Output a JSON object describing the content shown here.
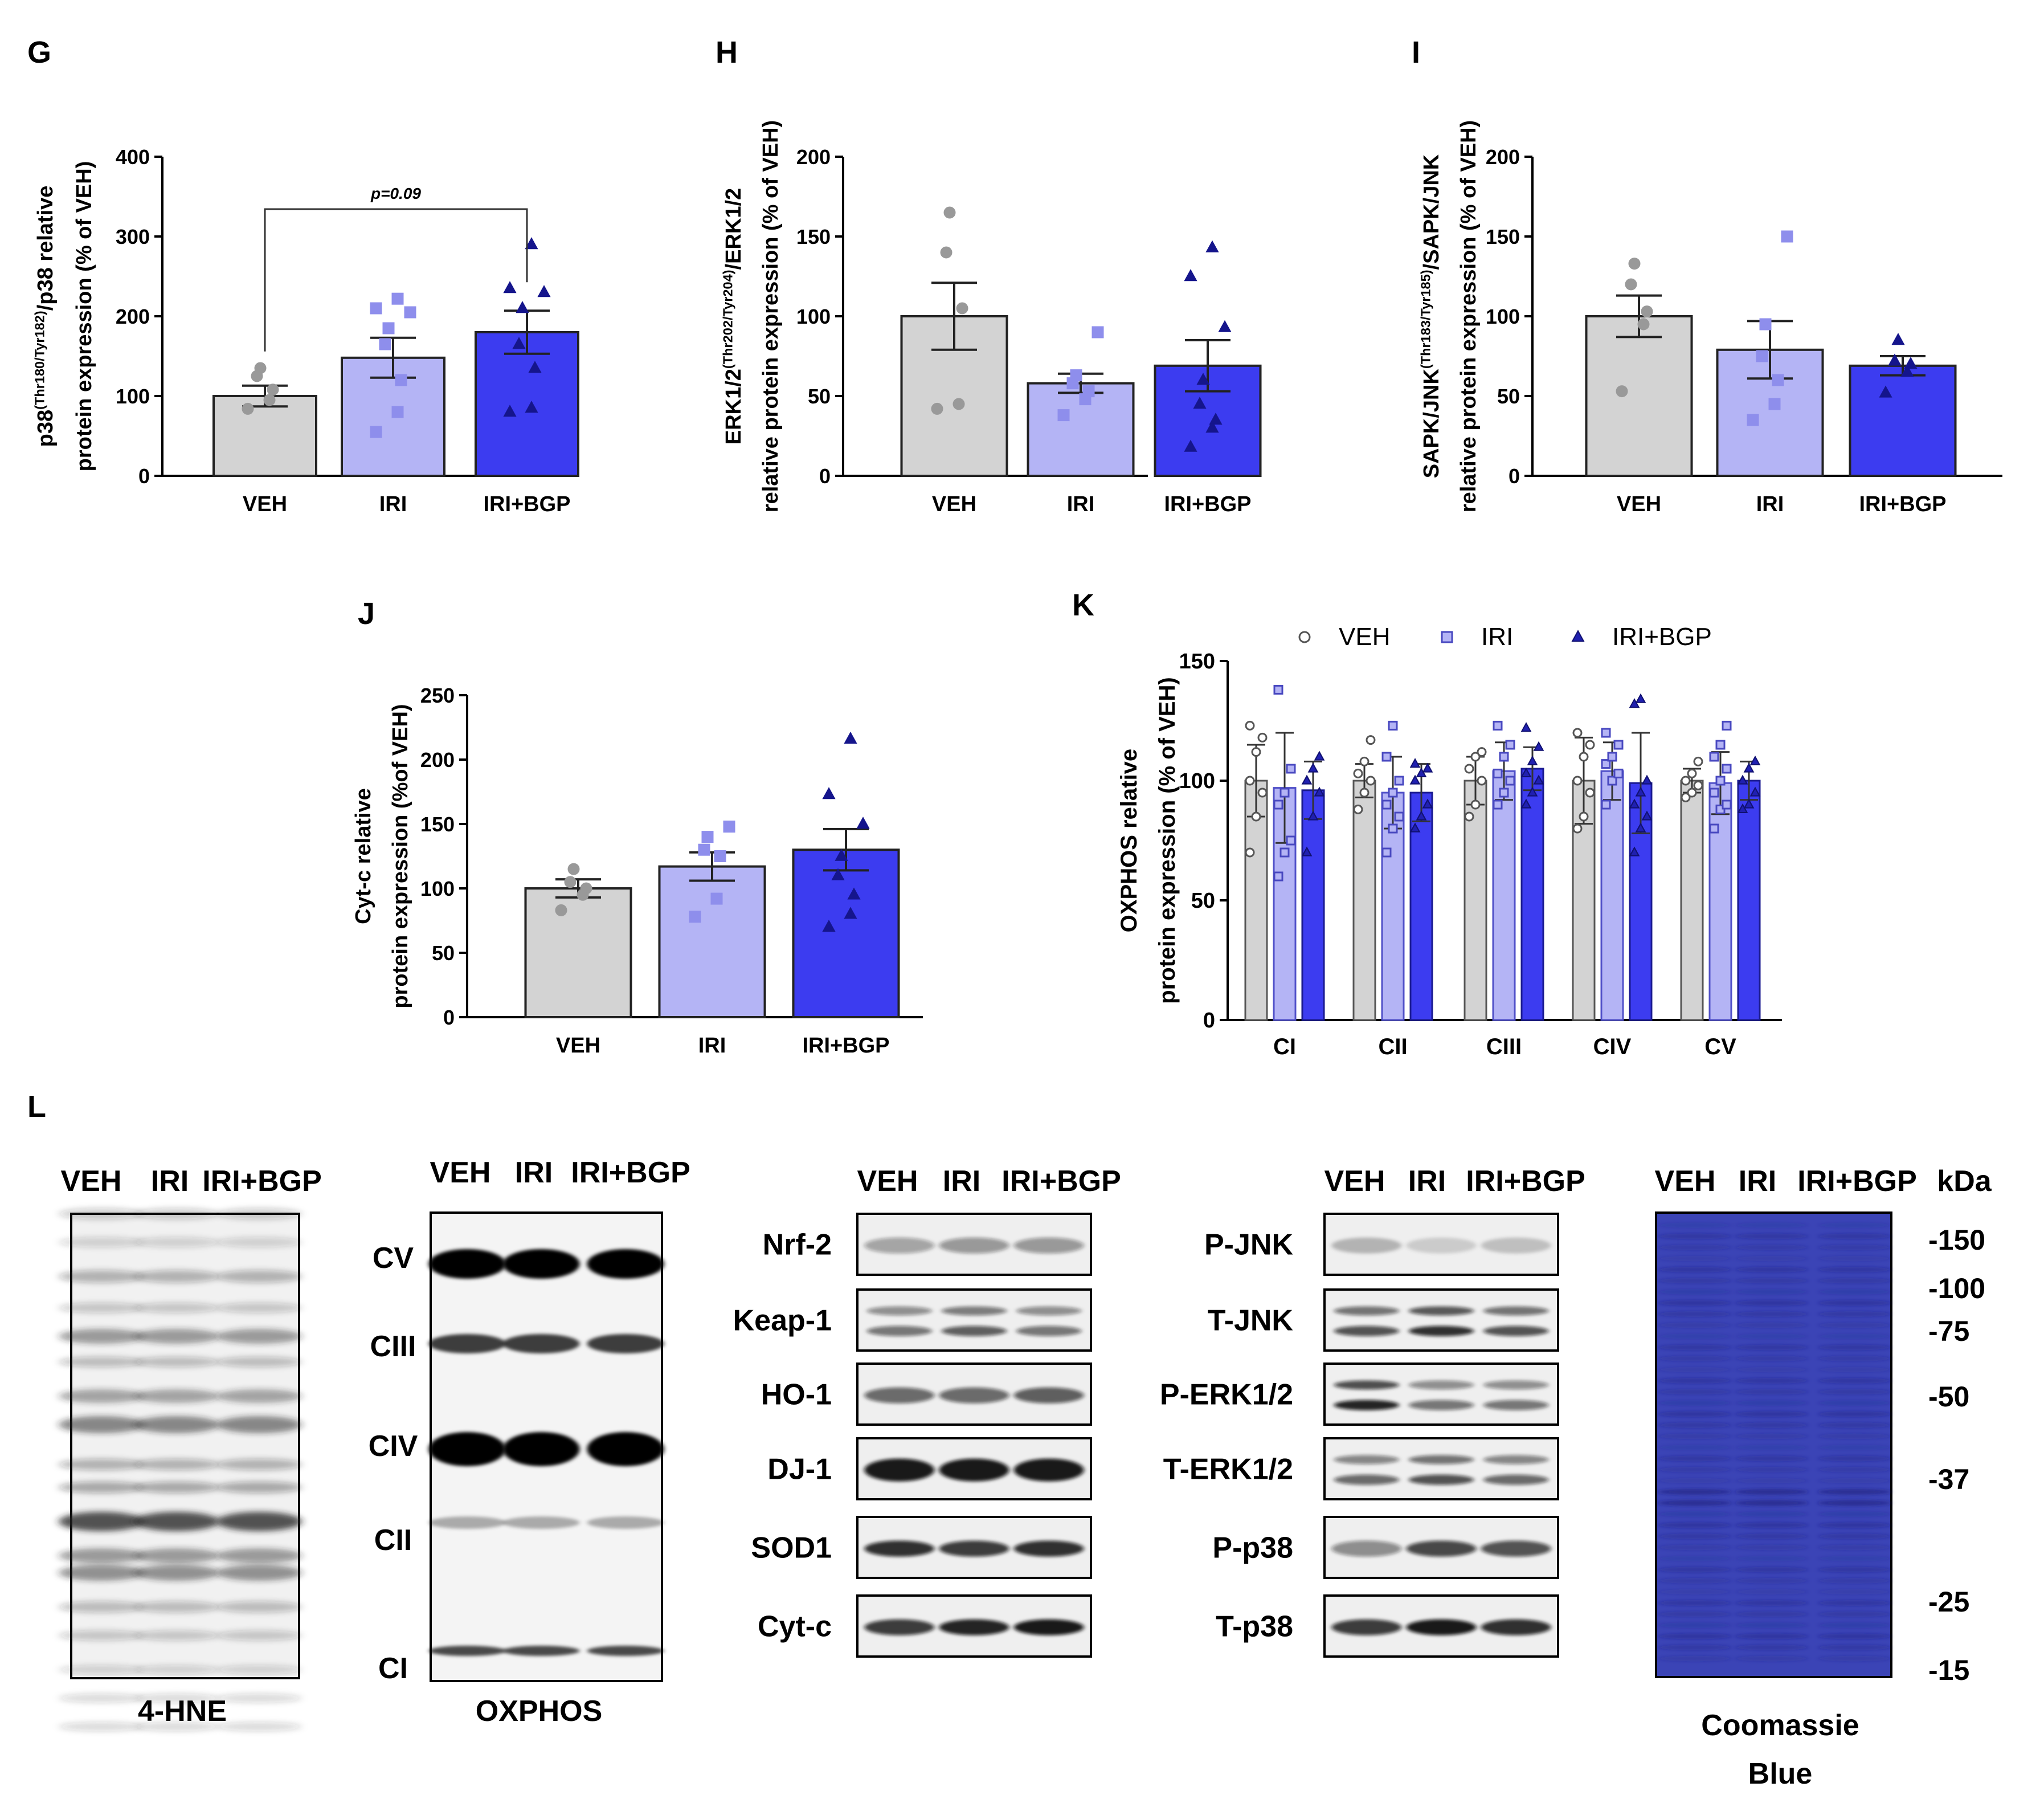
{
  "chart_data": [
    {
      "id": "G",
      "panel_label": "G",
      "type": "bar",
      "title": "",
      "ylabel_lines": [
        "p38|(Thr180/Tyr182)|/p38 relative",
        "protein expression (% of VEH)"
      ],
      "ylim": [
        0,
        400
      ],
      "ticks": [
        0,
        100,
        200,
        300,
        400
      ],
      "categories": [
        "VEH",
        "IRI",
        "IRI+BGP"
      ],
      "means": [
        100,
        148,
        180
      ],
      "sem": [
        13,
        25,
        27
      ],
      "points": [
        [
          84,
          95,
          108,
          125,
          135
        ],
        [
          55,
          80,
          120,
          165,
          185,
          205,
          210,
          222
        ],
        [
          80,
          85,
          135,
          165,
          210,
          230,
          235,
          290
        ]
      ],
      "annotation": {
        "text": "p=0.09",
        "from": 0,
        "to": 2,
        "level": 370
      }
    },
    {
      "id": "H",
      "panel_label": "H",
      "type": "bar",
      "title": "",
      "ylabel_lines": [
        "ERK1/2|(Thr202/Tyr204)|/ERK1/2",
        "relative protein expression (% of VEH)"
      ],
      "ylim": [
        0,
        200
      ],
      "ticks": [
        0,
        50,
        100,
        150,
        200
      ],
      "categories": [
        "VEH",
        "IRI",
        "IRI+BGP"
      ],
      "means": [
        100,
        58,
        69
      ],
      "sem": [
        21,
        6,
        16
      ],
      "points": [
        [
          42,
          45,
          105,
          140,
          165
        ],
        [
          38,
          48,
          53,
          58,
          63,
          90
        ],
        [
          18,
          30,
          35,
          45,
          60,
          93,
          125,
          143
        ]
      ]
    },
    {
      "id": "I",
      "panel_label": "I",
      "type": "bar",
      "title": "",
      "ylabel_lines": [
        "SAPK/JNK|(Thr183/Tyr185)|/SAPK/JNK",
        "relative protein expression (% of VEH)"
      ],
      "ylim": [
        0,
        200
      ],
      "ticks": [
        0,
        50,
        100,
        150,
        200
      ],
      "categories": [
        "VEH",
        "IRI",
        "IRI+BGP"
      ],
      "means": [
        100,
        79,
        69
      ],
      "sem": [
        13,
        18,
        6
      ],
      "points": [
        [
          53,
          95,
          103,
          120,
          133
        ],
        [
          35,
          45,
          60,
          75,
          95,
          150
        ],
        [
          52,
          65,
          70,
          72,
          85
        ]
      ]
    },
    {
      "id": "J",
      "panel_label": "J",
      "type": "bar",
      "title": "",
      "ylabel_lines": [
        "Cyt-c relative",
        "protein expression (%of VEH)"
      ],
      "ylim": [
        0,
        250
      ],
      "ticks": [
        0,
        50,
        100,
        150,
        200,
        250
      ],
      "categories": [
        "VEH",
        "IRI",
        "IRI+BGP"
      ],
      "means": [
        100,
        117,
        130
      ],
      "sem": [
        7,
        11,
        16
      ],
      "points": [
        [
          83,
          95,
          100,
          105,
          115
        ],
        [
          78,
          92,
          125,
          130,
          140,
          148
        ],
        [
          70,
          80,
          95,
          110,
          125,
          150,
          173,
          216
        ]
      ]
    },
    {
      "id": "K",
      "panel_label": "K",
      "type": "bar",
      "title": "",
      "ylabel_lines": [
        "OXPHOS relative",
        "protein expression (% of VEH)"
      ],
      "ylim": [
        0,
        150
      ],
      "ticks": [
        0,
        50,
        100,
        150
      ],
      "categories": [
        "CI",
        "CII",
        "CIII",
        "CIV",
        "CV"
      ],
      "legend": {
        "placement": "top",
        "entries": [
          "VEH",
          "IRI",
          "IRI+BGP"
        ]
      },
      "series": [
        {
          "name": "VEH",
          "values": [
            100,
            100,
            100,
            100,
            100
          ],
          "sd": [
            15,
            7,
            10,
            18,
            5
          ]
        },
        {
          "name": "IRI",
          "values": [
            97,
            95,
            104,
            104,
            99
          ],
          "sd": [
            23,
            15,
            12,
            12,
            13
          ]
        },
        {
          "name": "IRI+BGP",
          "values": [
            96,
            95,
            105,
            99,
            100
          ],
          "sd": [
            12,
            12,
            9,
            21,
            8
          ]
        }
      ],
      "points": [
        [
          [
            70,
            85,
            95,
            100,
            112,
            118,
            123
          ],
          [
            60,
            70,
            75,
            90,
            95,
            105,
            138
          ],
          [
            70,
            85,
            95,
            100,
            105,
            110
          ]
        ],
        [
          [
            88,
            95,
            100,
            103,
            108,
            117
          ],
          [
            70,
            80,
            85,
            90,
            95,
            100,
            110,
            123
          ],
          [
            80,
            85,
            90,
            100,
            103,
            105,
            107
          ]
        ],
        [
          [
            85,
            90,
            100,
            105,
            110,
            112
          ],
          [
            90,
            95,
            100,
            103,
            110,
            115,
            123
          ],
          [
            90,
            95,
            100,
            103,
            108,
            114,
            122
          ]
        ],
        [
          [
            80,
            85,
            95,
            100,
            110,
            115,
            120
          ],
          [
            90,
            100,
            103,
            107,
            110,
            115,
            120
          ],
          [
            70,
            80,
            85,
            90,
            95,
            100,
            132,
            134
          ]
        ],
        [
          [
            93,
            95,
            98,
            100,
            103,
            108
          ],
          [
            80,
            88,
            90,
            95,
            100,
            105,
            110,
            115,
            123
          ],
          [
            88,
            90,
            95,
            100,
            105,
            108
          ]
        ]
      ]
    }
  ],
  "colors": {
    "veh": "#d3d3d3",
    "iri": "#b4b4f5",
    "bgp": "#3c3cf0",
    "iri_pt": "#8e8eec",
    "bgp_pt": "#15158c",
    "veh_pt": "#999999",
    "coomassie": "#3b44b6"
  },
  "blots": {
    "panel_label": "L",
    "lanes": [
      "VEH",
      "IRI",
      "IRI+BGP"
    ],
    "kda_label": "kDa",
    "hne": {
      "caption": "4-HNE"
    },
    "oxphos": {
      "caption": "OXPHOS",
      "bands": [
        "CV",
        "CIII",
        "CIV",
        "CII",
        "CI"
      ]
    },
    "nrf": {
      "bands": [
        "Nrf-2",
        "Keap-1",
        "HO-1",
        "DJ-1",
        "SOD1",
        "Cyt-c"
      ]
    },
    "mapk": {
      "bands": [
        "P-JNK",
        "T-JNK",
        "P-ERK1/2",
        "T-ERK1/2",
        "P-p38",
        "T-p38"
      ]
    },
    "coomassie": {
      "caption_lines": [
        "Coomassie",
        "Blue"
      ],
      "markers": [
        "-150",
        "-100",
        "-75",
        "-50",
        "-37",
        "-25",
        "-15"
      ]
    }
  }
}
